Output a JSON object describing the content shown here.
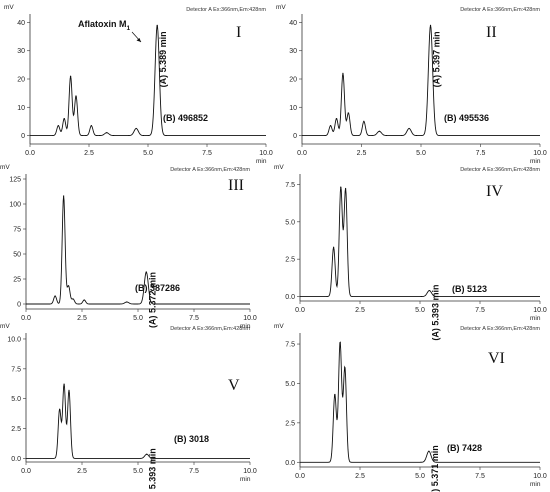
{
  "chart_data": [
    {
      "type": "line",
      "panel_label": "I",
      "y_unit": "mV",
      "x_unit": "min",
      "detector": "Detector A Ex:366nm,Em:428nm",
      "xlim": [
        0,
        10
      ],
      "ylim": [
        -3,
        43
      ],
      "x_ticks": [
        0,
        2.5,
        5,
        7.5,
        10
      ],
      "x_tick_labels": [
        "0.0",
        "2.5",
        "5.0",
        "7.5",
        "10.0"
      ],
      "y_ticks": [
        0,
        10,
        20,
        30,
        40
      ],
      "y_tick_labels": [
        "0",
        "10",
        "20",
        "30",
        "40"
      ],
      "peaks": [
        {
          "rt": 1.2,
          "height": 3.5
        },
        {
          "rt": 1.45,
          "height": 6
        },
        {
          "rt": 1.72,
          "height": 21
        },
        {
          "rt": 1.95,
          "height": 14
        },
        {
          "rt": 2.6,
          "height": 3.5
        },
        {
          "rt": 3.25,
          "height": 1
        },
        {
          "rt": 4.5,
          "height": 2.5
        },
        {
          "rt": 5.39,
          "height": 39
        }
      ],
      "retention_label": "(A) 5.389 min",
      "area_label": "(B) 496852",
      "compound_label": "Aflatoxin M",
      "compound_subscript": "1"
    },
    {
      "type": "line",
      "panel_label": "II",
      "y_unit": "mV",
      "x_unit": "min",
      "detector": "Detector A Ex:366nm,Em:428nm",
      "xlim": [
        0,
        10
      ],
      "ylim": [
        -3,
        43
      ],
      "x_ticks": [
        0,
        2.5,
        5,
        7.5,
        10
      ],
      "x_tick_labels": [
        "0.0",
        "2.5",
        "5.0",
        "7.5",
        "10.0"
      ],
      "y_ticks": [
        0,
        10,
        20,
        30,
        40
      ],
      "y_tick_labels": [
        "0",
        "10",
        "20",
        "30",
        "40"
      ],
      "peaks": [
        {
          "rt": 1.2,
          "height": 3.5
        },
        {
          "rt": 1.45,
          "height": 6
        },
        {
          "rt": 1.72,
          "height": 22
        },
        {
          "rt": 1.95,
          "height": 8
        },
        {
          "rt": 2.6,
          "height": 5
        },
        {
          "rt": 3.25,
          "height": 1.5
        },
        {
          "rt": 4.5,
          "height": 2.5
        },
        {
          "rt": 5.4,
          "height": 39
        }
      ],
      "retention_label": "(A) 5.397 min",
      "area_label": "(B) 495536"
    },
    {
      "type": "line",
      "panel_label": "III",
      "y_unit": "mV",
      "x_unit": "min",
      "detector": "Detector A Ex:366nm,Em:428nm",
      "xlim": [
        0,
        10
      ],
      "ylim": [
        -5,
        130
      ],
      "x_ticks": [
        0,
        2.5,
        5,
        7.5,
        10
      ],
      "x_tick_labels": [
        "0.0",
        "2.5",
        "5.0",
        "7.5",
        "10.0"
      ],
      "y_ticks": [
        0,
        25,
        50,
        75,
        100,
        125
      ],
      "y_tick_labels": [
        "0",
        "25",
        "50",
        "75",
        "100",
        "125"
      ],
      "peaks": [
        {
          "rt": 1.3,
          "height": 8
        },
        {
          "rt": 1.68,
          "height": 108
        },
        {
          "rt": 1.9,
          "height": 18
        },
        {
          "rt": 2.1,
          "height": 5
        },
        {
          "rt": 2.6,
          "height": 4
        },
        {
          "rt": 4.5,
          "height": 2
        },
        {
          "rt": 5.37,
          "height": 32
        }
      ],
      "retention_label": "(A) 5.372 min",
      "area_label": "(B) 387286"
    },
    {
      "type": "line",
      "panel_label": "IV",
      "y_unit": "mV",
      "x_unit": "min",
      "detector": "Detector A Ex:366nm,Em:428nm",
      "xlim": [
        0,
        10
      ],
      "ylim": [
        -0.3,
        8.2
      ],
      "x_ticks": [
        0,
        2.5,
        5,
        7.5,
        10
      ],
      "x_tick_labels": [
        "0.0",
        "2.5",
        "5.0",
        "7.5",
        "10.0"
      ],
      "y_ticks": [
        0,
        2.5,
        5,
        7.5
      ],
      "y_tick_labels": [
        "0.0",
        "2.5",
        "5.0",
        "7.5"
      ],
      "peaks": [
        {
          "rt": 1.4,
          "height": 3.3
        },
        {
          "rt": 1.7,
          "height": 7.3
        },
        {
          "rt": 1.9,
          "height": 7.2
        },
        {
          "rt": 5.39,
          "height": 0.4
        }
      ],
      "retention_label": "(A) 5.393 min",
      "area_label": "(B) 5123"
    },
    {
      "type": "line",
      "panel_label": "V",
      "y_unit": "mV",
      "x_unit": "min",
      "detector": "Detector A Ex:366nm,Em:428nm",
      "xlim": [
        0,
        10
      ],
      "ylim": [
        -0.3,
        10.5
      ],
      "x_ticks": [
        0,
        2.5,
        5,
        7.5,
        10
      ],
      "x_tick_labels": [
        "0.0",
        "2.5",
        "5.0",
        "7.5",
        "10.0"
      ],
      "y_ticks": [
        0,
        2.5,
        5,
        7.5,
        10
      ],
      "y_tick_labels": [
        "0.0",
        "2.5",
        "5.0",
        "7.5",
        "10.0"
      ],
      "peaks": [
        {
          "rt": 1.5,
          "height": 4.1
        },
        {
          "rt": 1.7,
          "height": 6.2
        },
        {
          "rt": 1.92,
          "height": 5.7
        },
        {
          "rt": 5.39,
          "height": 0.35
        }
      ],
      "retention_label": "(A) 5.393 min",
      "area_label": "(B) 3018"
    },
    {
      "type": "line",
      "panel_label": "VI",
      "y_unit": "mV",
      "x_unit": "min",
      "detector": "Detector A Ex:366nm,Em:428nm",
      "xlim": [
        0,
        10
      ],
      "ylim": [
        -0.3,
        8.2
      ],
      "x_ticks": [
        0,
        2.5,
        5,
        7.5,
        10
      ],
      "x_tick_labels": [
        "0.0",
        "2.5",
        "5.0",
        "7.5",
        "10.0"
      ],
      "y_ticks": [
        0,
        2.5,
        5,
        7.5
      ],
      "y_tick_labels": [
        "0.0",
        "2.5",
        "5.0",
        "7.5"
      ],
      "peaks": [
        {
          "rt": 1.45,
          "height": 4.3
        },
        {
          "rt": 1.67,
          "height": 7.6
        },
        {
          "rt": 1.87,
          "height": 6.0
        },
        {
          "rt": 5.37,
          "height": 0.7
        }
      ],
      "retention_label": "(A) 5.371 min",
      "area_label": "(B) 7428"
    }
  ]
}
